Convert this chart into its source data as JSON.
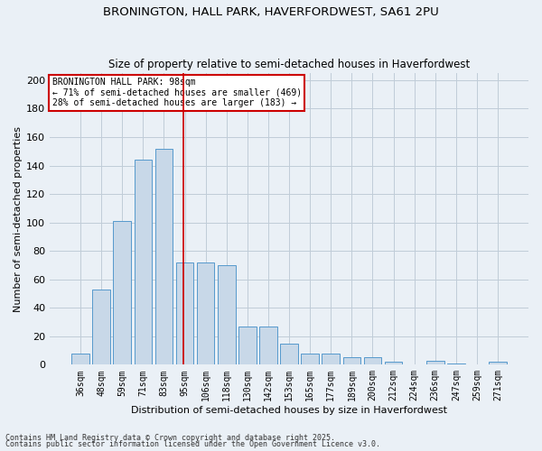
{
  "title1": "BRONINGTON, HALL PARK, HAVERFORDWEST, SA61 2PU",
  "title2": "Size of property relative to semi-detached houses in Haverfordwest",
  "xlabel": "Distribution of semi-detached houses by size in Haverfordwest",
  "ylabel": "Number of semi-detached properties",
  "categories": [
    "36sqm",
    "48sqm",
    "59sqm",
    "71sqm",
    "83sqm",
    "95sqm",
    "106sqm",
    "118sqm",
    "130sqm",
    "142sqm",
    "153sqm",
    "165sqm",
    "177sqm",
    "189sqm",
    "200sqm",
    "212sqm",
    "224sqm",
    "236sqm",
    "247sqm",
    "259sqm",
    "271sqm"
  ],
  "values": [
    8,
    53,
    101,
    144,
    152,
    72,
    72,
    70,
    27,
    27,
    15,
    8,
    8,
    5,
    5,
    2,
    0,
    3,
    1,
    0,
    2
  ],
  "bar_color": "#c8d8e8",
  "bar_edge_color": "#5599cc",
  "grid_color": "#c0ccd8",
  "background_color": "#eaf0f6",
  "vline_index": 5,
  "vline_color": "#cc0000",
  "annotation_title": "BRONINGTON HALL PARK: 98sqm",
  "annotation_line1": "← 71% of semi-detached houses are smaller (469)",
  "annotation_line2": "28% of semi-detached houses are larger (183) →",
  "annotation_box_color": "#ffffff",
  "annotation_box_edge": "#cc0000",
  "ylim": [
    0,
    205
  ],
  "yticks": [
    0,
    20,
    40,
    60,
    80,
    100,
    120,
    140,
    160,
    180,
    200
  ],
  "footer1": "Contains HM Land Registry data © Crown copyright and database right 2025.",
  "footer2": "Contains public sector information licensed under the Open Government Licence v3.0."
}
